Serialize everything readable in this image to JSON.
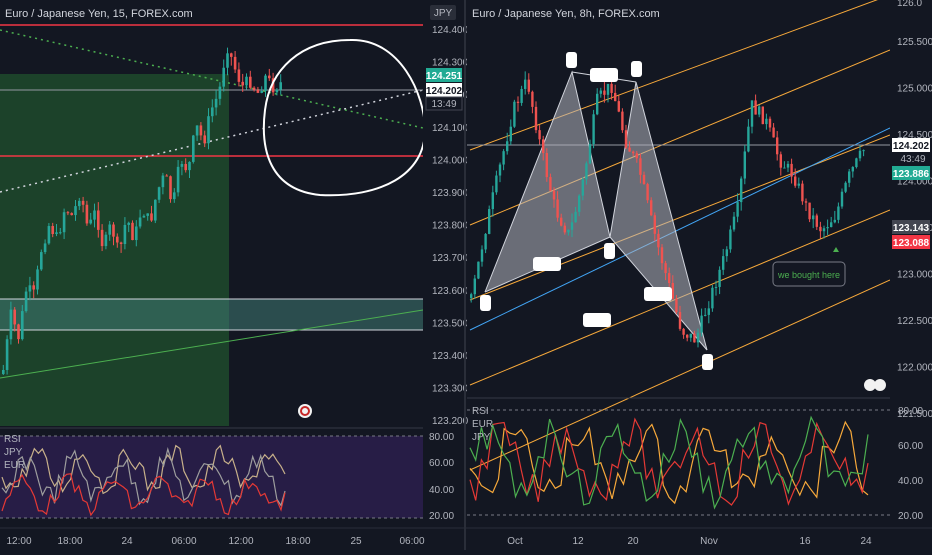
{
  "left": {
    "title": "Euro / Japanese Yen, 15, FOREX.com",
    "currency_badge": "JPY",
    "y_ticks": [
      "124.400",
      "124.300",
      "124.200",
      "124.100",
      "124.000",
      "123.900",
      "123.800",
      "123.700",
      "123.600",
      "123.500",
      "123.400",
      "123.300",
      "123.200"
    ],
    "x_ticks": [
      "12:00",
      "18:00",
      "24",
      "06:00",
      "12:00",
      "18:00",
      "25",
      "06:00"
    ],
    "price_tags": {
      "green": "124.251",
      "white": "124.202",
      "timer": "13:49"
    },
    "rsi": {
      "labels": [
        "RSI",
        "JPY",
        "EUR"
      ],
      "ticks": [
        "80.00",
        "60.00",
        "40.00",
        "20.00"
      ]
    },
    "chart_data": {
      "type": "candlestick",
      "title": "Euro / Japanese Yen, 15, FOREX.com",
      "ylim": [
        123.16,
        124.46
      ],
      "levels": [
        124.42,
        124.0
      ],
      "last_price": 124.202,
      "marker_price": 124.251,
      "ohlc_close_path": [
        123.35,
        123.52,
        123.45,
        123.6,
        123.58,
        123.73,
        123.8,
        123.75,
        123.85,
        123.82,
        123.9,
        123.78,
        123.84,
        123.72,
        123.8,
        123.7,
        123.82,
        123.75,
        123.85,
        123.8,
        123.9,
        123.95,
        123.85,
        124.0,
        123.96,
        124.1,
        124.05,
        124.15,
        124.2,
        124.35,
        124.28,
        124.22,
        124.24,
        124.2,
        124.25,
        124.22,
        124.23
      ]
    }
  },
  "right": {
    "title": "Euro / Japanese Yen, 8h, FOREX.com",
    "y_ticks": [
      "125.500",
      "125.000",
      "124.500",
      "124.000",
      "123.500",
      "123.000",
      "122.500",
      "122.000",
      "121.500"
    ],
    "x_ticks": [
      "Oct",
      "12",
      "20",
      "Nov",
      "16",
      "24"
    ],
    "price_tags": {
      "white": "124.202",
      "timer": "43:49",
      "green": "123.886",
      "gray": "123.143",
      "red": "123.088"
    },
    "annotation": "we bought here",
    "rsi": {
      "labels": [
        "RSI",
        "EUR",
        "JPY"
      ],
      "ticks": [
        "80.00",
        "60.00",
        "40.00",
        "20.00"
      ]
    },
    "chart_data": {
      "type": "candlestick",
      "title": "Euro / Japanese Yen, 8h, FOREX.com",
      "ylim": [
        121.2,
        125.9
      ],
      "harmonic_points": [
        122.4,
        125.1,
        122.95,
        124.95,
        122.55,
        121.6
      ],
      "last_price": 124.202
    }
  },
  "colors": {
    "bg": "#131722",
    "up": "#26a69a",
    "down": "#ef5350",
    "red_line": "#f23645",
    "green_tag": "#22ab94",
    "orange": "#f7a93b",
    "blue": "#42a5f5"
  }
}
